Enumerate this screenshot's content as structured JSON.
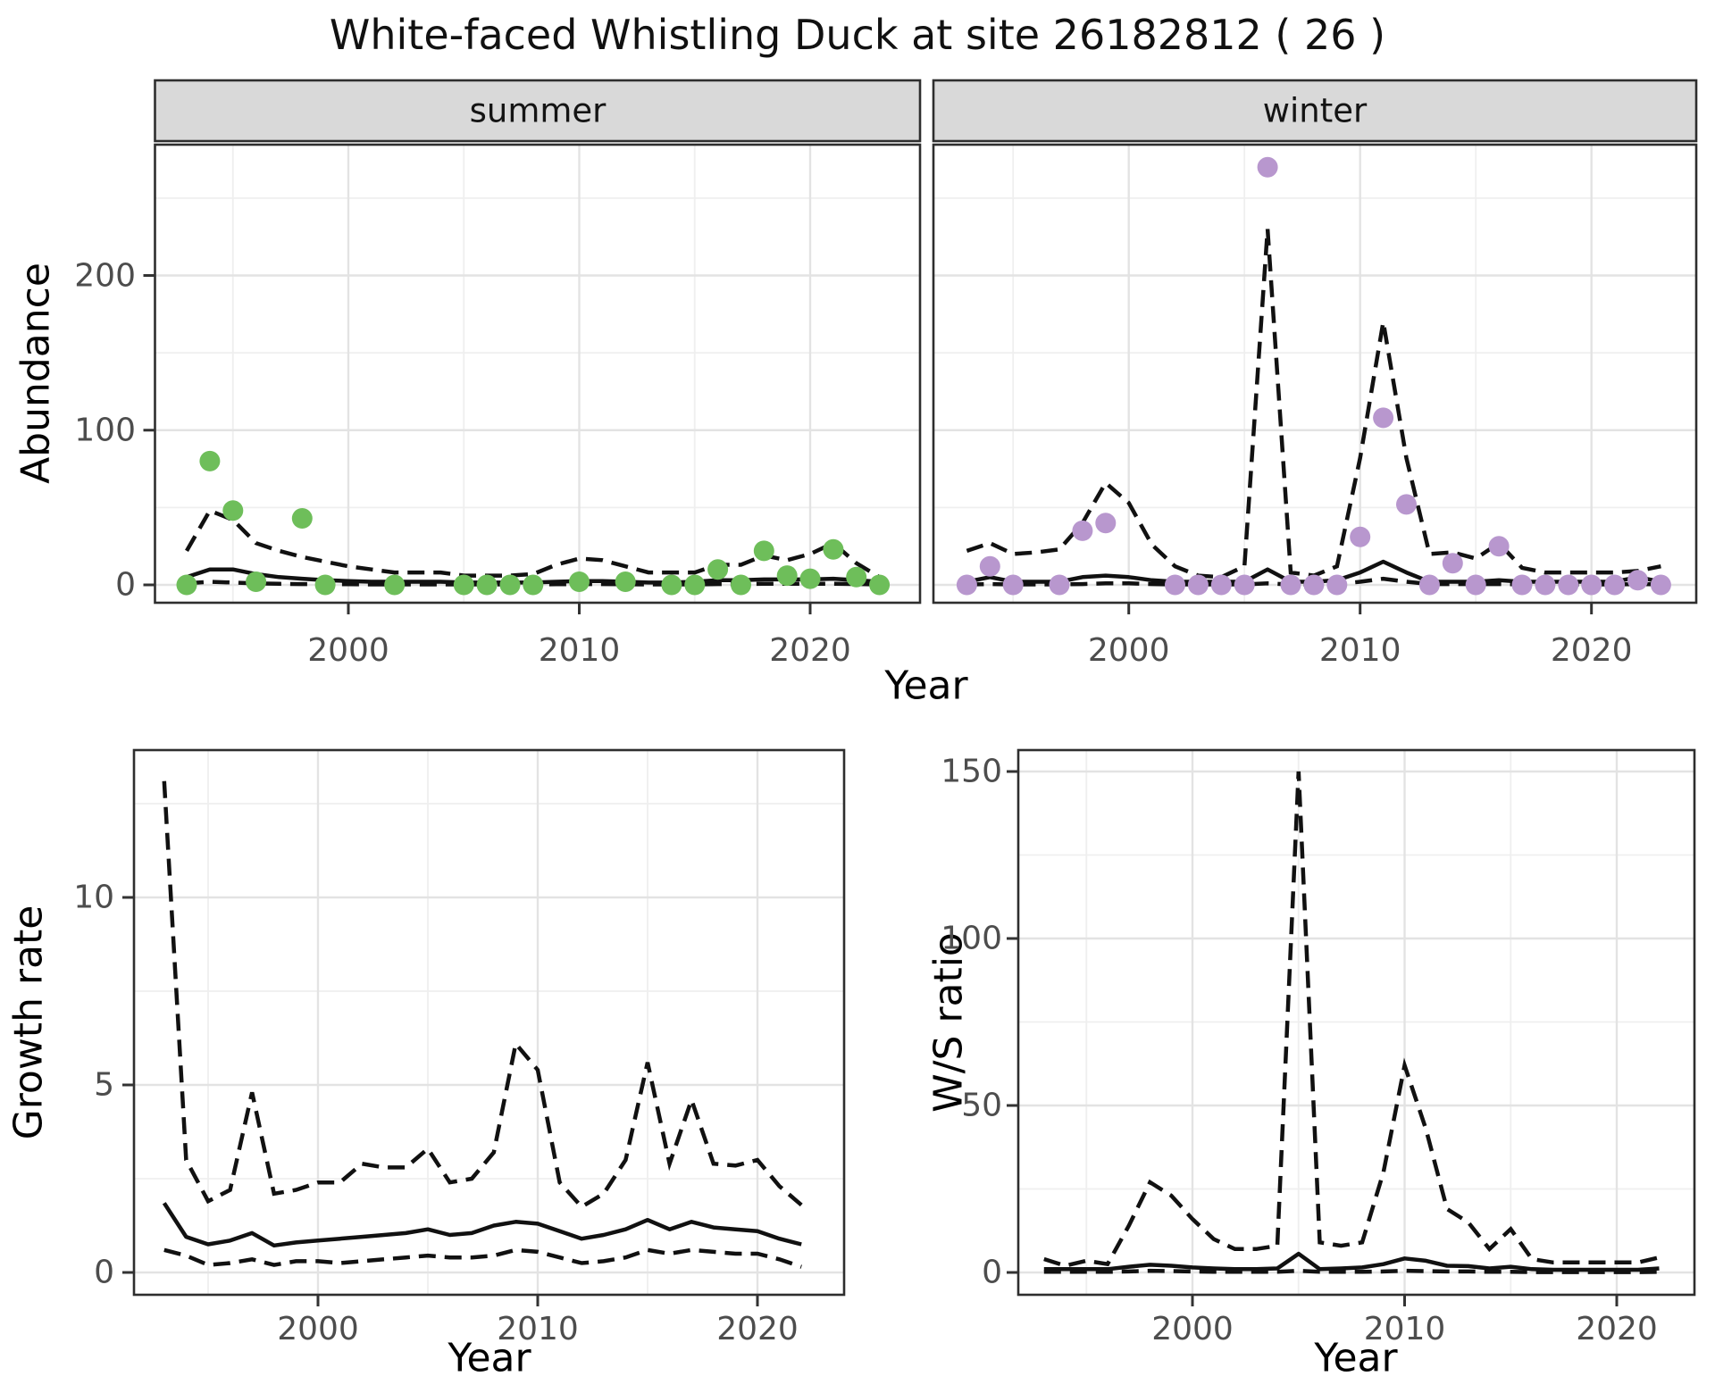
{
  "title": "White-faced Whistling Duck at site 26182812 ( 26 )",
  "facets": {
    "summer_label": "summer",
    "winter_label": "winter"
  },
  "axis_titles": {
    "abundance": "Abundance",
    "year_top": "Year",
    "growth_rate": "Growth rate",
    "year_growth": "Year",
    "ws_ratio": "W/S ratio",
    "year_ws": "Year"
  },
  "colors": {
    "summer_point": "#6ebe5a",
    "winter_point": "#b897ce",
    "line": "#111111",
    "strip_bg": "#d9d9d9",
    "panel_border": "#2e2e2e",
    "grid_major": "#e3e3e3",
    "grid_minor": "#efefef",
    "tick_text": "#4d4d4d"
  },
  "chart_data": [
    {
      "id": "abundance_summer",
      "type": "scatter+line",
      "facet": "summer",
      "xlabel": "Year",
      "ylabel": "Abundance",
      "x_ticks": [
        2000,
        2010,
        2020
      ],
      "y_ticks": [
        0,
        100,
        200
      ],
      "xlim": [
        1991.6,
        2024.8
      ],
      "ylim": [
        -13,
        284
      ],
      "grid": true,
      "legend": "none",
      "points": {
        "years": [
          1993,
          1994,
          1995,
          1996,
          1998,
          1999,
          2002,
          2005,
          2006,
          2007,
          2008,
          2010,
          2012,
          2014,
          2015,
          2016,
          2017,
          2018,
          2019,
          2020,
          2021,
          2022,
          2023
        ],
        "values": [
          0,
          80,
          48,
          2,
          43,
          0,
          0,
          0,
          0,
          0,
          0,
          2,
          2,
          0,
          0,
          10,
          0,
          22,
          6,
          4,
          23,
          5,
          0
        ]
      },
      "median": {
        "years": [
          1993,
          1994,
          1995,
          1996,
          1997,
          1998,
          1999,
          2000,
          2001,
          2002,
          2003,
          2004,
          2005,
          2006,
          2007,
          2008,
          2009,
          2010,
          2011,
          2012,
          2013,
          2014,
          2015,
          2016,
          2017,
          2018,
          2019,
          2020,
          2021,
          2022,
          2023
        ],
        "values": [
          5,
          10,
          10,
          7,
          5,
          4,
          3,
          2.5,
          2,
          2,
          2,
          2,
          1.5,
          1.5,
          1.5,
          1.5,
          2,
          2.5,
          2.5,
          2,
          1.5,
          1.5,
          2,
          3,
          3,
          3.5,
          3.5,
          3.5,
          4,
          3,
          2
        ]
      },
      "upper_ci": {
        "years": [
          1993,
          1994,
          1995,
          1996,
          1997,
          1998,
          1999,
          2000,
          2001,
          2002,
          2003,
          2004,
          2005,
          2006,
          2007,
          2008,
          2009,
          2010,
          2011,
          2012,
          2013,
          2014,
          2015,
          2016,
          2017,
          2018,
          2019,
          2020,
          2021,
          2022,
          2023
        ],
        "values": [
          22,
          48,
          42,
          27,
          22,
          18,
          15,
          12,
          10,
          8,
          8,
          8,
          6,
          6,
          6,
          7,
          13,
          17,
          16,
          12,
          8,
          8,
          8,
          13,
          13,
          19,
          16,
          20,
          27,
          14,
          5
        ]
      },
      "lower_ci": {
        "years": [
          1993,
          1994,
          1995,
          1996,
          1997,
          1998,
          1999,
          2000,
          2001,
          2002,
          2003,
          2004,
          2005,
          2006,
          2007,
          2008,
          2009,
          2010,
          2011,
          2012,
          2013,
          2014,
          2015,
          2016,
          2017,
          2018,
          2019,
          2020,
          2021,
          2022,
          2023
        ],
        "values": [
          1,
          2,
          1.5,
          1,
          0.7,
          0.5,
          0.4,
          0.4,
          0.3,
          0.3,
          0.3,
          0.3,
          0.3,
          0.3,
          0.3,
          0.3,
          0.4,
          0.5,
          0.5,
          0.4,
          0.3,
          0.3,
          0.3,
          0.5,
          0.5,
          0.7,
          0.7,
          0.7,
          0.7,
          0.5,
          0.3
        ]
      }
    },
    {
      "id": "abundance_winter",
      "type": "scatter+line",
      "facet": "winter",
      "xlabel": "Year",
      "ylabel": "Abundance",
      "x_ticks": [
        2000,
        2010,
        2020
      ],
      "y_ticks": [
        0,
        100,
        200
      ],
      "xlim": [
        1991.6,
        2024.8
      ],
      "ylim": [
        -13,
        284
      ],
      "grid": true,
      "legend": "none",
      "points": {
        "years": [
          1993,
          1994,
          1995,
          1997,
          1998,
          1999,
          2002,
          2003,
          2004,
          2005,
          2006,
          2007,
          2008,
          2009,
          2010,
          2011,
          2012,
          2013,
          2014,
          2015,
          2016,
          2017,
          2018,
          2019,
          2020,
          2021,
          2022,
          2023
        ],
        "values": [
          0,
          12,
          0,
          0,
          35,
          40,
          0,
          0,
          0,
          0,
          270,
          0,
          0,
          0,
          31,
          108,
          52,
          0,
          14,
          0,
          25,
          0,
          0,
          0,
          0,
          0,
          3,
          0
        ]
      },
      "median": {
        "years": [
          1993,
          1994,
          1995,
          1996,
          1997,
          1998,
          1999,
          2000,
          2001,
          2002,
          2003,
          2004,
          2005,
          2006,
          2007,
          2008,
          2009,
          2010,
          2011,
          2012,
          2013,
          2014,
          2015,
          2016,
          2017,
          2018,
          2019,
          2020,
          2021,
          2022,
          2023
        ],
        "values": [
          2,
          5,
          2,
          2,
          2,
          5,
          6,
          5,
          3,
          2,
          2,
          2,
          2,
          10,
          2,
          2,
          3,
          8,
          15,
          8,
          2,
          2,
          2,
          3,
          2,
          2,
          2,
          2,
          2,
          5,
          2
        ]
      },
      "upper_ci": {
        "years": [
          1993,
          1994,
          1995,
          1996,
          1997,
          1998,
          1999,
          2000,
          2001,
          2002,
          2003,
          2004,
          2005,
          2006,
          2007,
          2008,
          2009,
          2010,
          2011,
          2012,
          2013,
          2014,
          2015,
          2016,
          2017,
          2018,
          2019,
          2020,
          2021,
          2022,
          2023
        ],
        "values": [
          22,
          27,
          20,
          21,
          23,
          40,
          66,
          53,
          26,
          12,
          6,
          5,
          12,
          230,
          8,
          6,
          12,
          82,
          170,
          82,
          20,
          21,
          17,
          27,
          11,
          8,
          8,
          8,
          8,
          9,
          12
        ]
      },
      "lower_ci": {
        "years": [
          1993,
          1994,
          1995,
          1996,
          1997,
          1998,
          1999,
          2000,
          2001,
          2002,
          2003,
          2004,
          2005,
          2006,
          2007,
          2008,
          2009,
          2010,
          2011,
          2012,
          2013,
          2014,
          2015,
          2016,
          2017,
          2018,
          2019,
          2020,
          2021,
          2022,
          2023
        ],
        "values": [
          0.3,
          0.5,
          0.3,
          0.3,
          0.3,
          0.5,
          1,
          1,
          0.5,
          0.3,
          0.3,
          0.3,
          0.3,
          1,
          0.3,
          0.3,
          0.5,
          2,
          4,
          2,
          0.5,
          0.5,
          0.5,
          0.5,
          0.3,
          0.3,
          0.3,
          0.3,
          0.3,
          0.5,
          0.3
        ]
      }
    },
    {
      "id": "growth_rate",
      "type": "line",
      "xlabel": "Year",
      "ylabel": "Growth rate",
      "x_ticks": [
        2000,
        2010,
        2020
      ],
      "y_ticks": [
        0,
        5,
        10
      ],
      "xlim": [
        1991.6,
        2023.9
      ],
      "ylim": [
        -0.35,
        13.9
      ],
      "grid": true,
      "legend": "none",
      "median": {
        "years": [
          1993,
          1994,
          1995,
          1996,
          1997,
          1998,
          1999,
          2000,
          2001,
          2002,
          2003,
          2004,
          2005,
          2006,
          2007,
          2008,
          2009,
          2010,
          2011,
          2012,
          2013,
          2014,
          2015,
          2016,
          2017,
          2018,
          2019,
          2020,
          2021,
          2022
        ],
        "values": [
          1.85,
          0.95,
          0.75,
          0.85,
          1.05,
          0.72,
          0.8,
          0.85,
          0.9,
          0.95,
          1.0,
          1.05,
          1.15,
          1.0,
          1.05,
          1.25,
          1.35,
          1.3,
          1.1,
          0.9,
          1.0,
          1.15,
          1.4,
          1.15,
          1.35,
          1.2,
          1.15,
          1.1,
          0.9,
          0.75
        ]
      },
      "upper_ci": {
        "years": [
          1993,
          1994,
          1995,
          1996,
          1997,
          1998,
          1999,
          2000,
          2001,
          2002,
          2003,
          2004,
          2005,
          2006,
          2007,
          2008,
          2009,
          2010,
          2011,
          2012,
          2013,
          2014,
          2015,
          2016,
          2017,
          2018,
          2019,
          2020,
          2021,
          2022
        ],
        "values": [
          13.1,
          3.0,
          1.9,
          2.2,
          4.8,
          2.1,
          2.2,
          2.4,
          2.4,
          2.9,
          2.8,
          2.8,
          3.3,
          2.4,
          2.5,
          3.2,
          6.1,
          5.4,
          2.4,
          1.75,
          2.1,
          3.0,
          5.6,
          2.9,
          4.6,
          2.9,
          2.85,
          3.0,
          2.3,
          1.8
        ]
      },
      "lower_ci": {
        "years": [
          1993,
          1994,
          1995,
          1996,
          1997,
          1998,
          1999,
          2000,
          2001,
          2002,
          2003,
          2004,
          2005,
          2006,
          2007,
          2008,
          2009,
          2010,
          2011,
          2012,
          2013,
          2014,
          2015,
          2016,
          2017,
          2018,
          2019,
          2020,
          2021,
          2022
        ],
        "values": [
          0.6,
          0.45,
          0.2,
          0.25,
          0.35,
          0.2,
          0.3,
          0.3,
          0.25,
          0.3,
          0.35,
          0.4,
          0.45,
          0.4,
          0.4,
          0.45,
          0.6,
          0.55,
          0.4,
          0.25,
          0.3,
          0.4,
          0.6,
          0.5,
          0.6,
          0.55,
          0.5,
          0.5,
          0.35,
          0.15
        ]
      }
    },
    {
      "id": "ws_ratio",
      "type": "line",
      "xlabel": "Year",
      "ylabel": "W/S ratio",
      "x_ticks": [
        2000,
        2010,
        2020
      ],
      "y_ticks": [
        0,
        50,
        100,
        150
      ],
      "xlim": [
        1991.8,
        2023.7
      ],
      "ylim": [
        -4,
        156
      ],
      "grid": true,
      "legend": "none",
      "median": {
        "years": [
          1993,
          1994,
          1995,
          1996,
          1997,
          1998,
          1999,
          2000,
          2001,
          2002,
          2003,
          2004,
          2005,
          2006,
          2007,
          2008,
          2009,
          2010,
          2011,
          2012,
          2013,
          2014,
          2015,
          2016,
          2017,
          2018,
          2019,
          2020,
          2021,
          2022
        ],
        "values": [
          1,
          1,
          1,
          1,
          1.7,
          2.3,
          2,
          1.5,
          1.2,
          1,
          1,
          1.2,
          5.6,
          1,
          1.2,
          1.5,
          2.5,
          4.2,
          3.5,
          2,
          1.9,
          1.2,
          1.7,
          1,
          0.8,
          0.8,
          0.8,
          0.8,
          0.8,
          1.2
        ]
      },
      "upper_ci": {
        "years": [
          1993,
          1994,
          1995,
          1996,
          1997,
          1998,
          1999,
          2000,
          2001,
          2002,
          2003,
          2004,
          2005,
          2006,
          2007,
          2008,
          2009,
          2010,
          2011,
          2012,
          2013,
          2014,
          2015,
          2016,
          2017,
          2018,
          2019,
          2020,
          2021,
          2022
        ],
        "values": [
          4,
          2,
          3.5,
          2.5,
          14,
          27,
          23,
          16,
          10,
          7,
          7,
          8,
          150,
          9,
          8,
          9,
          30,
          62,
          43,
          19,
          15,
          7,
          13,
          4,
          3,
          3,
          3,
          3,
          3,
          4.5
        ]
      },
      "lower_ci": {
        "years": [
          1993,
          1994,
          1995,
          1996,
          1997,
          1998,
          1999,
          2000,
          2001,
          2002,
          2003,
          2004,
          2005,
          2006,
          2007,
          2008,
          2009,
          2010,
          2011,
          2012,
          2013,
          2014,
          2015,
          2016,
          2017,
          2018,
          2019,
          2020,
          2021,
          2022
        ],
        "values": [
          0.2,
          0.2,
          0.2,
          0.2,
          0.3,
          0.5,
          0.4,
          0.3,
          0.2,
          0.2,
          0.2,
          0.2,
          0.5,
          0.2,
          0.2,
          0.2,
          0.3,
          0.5,
          0.4,
          0.3,
          0.3,
          0.2,
          0.2,
          0.1,
          0.1,
          0.1,
          0.1,
          0.1,
          0.1,
          0.2
        ]
      }
    }
  ]
}
